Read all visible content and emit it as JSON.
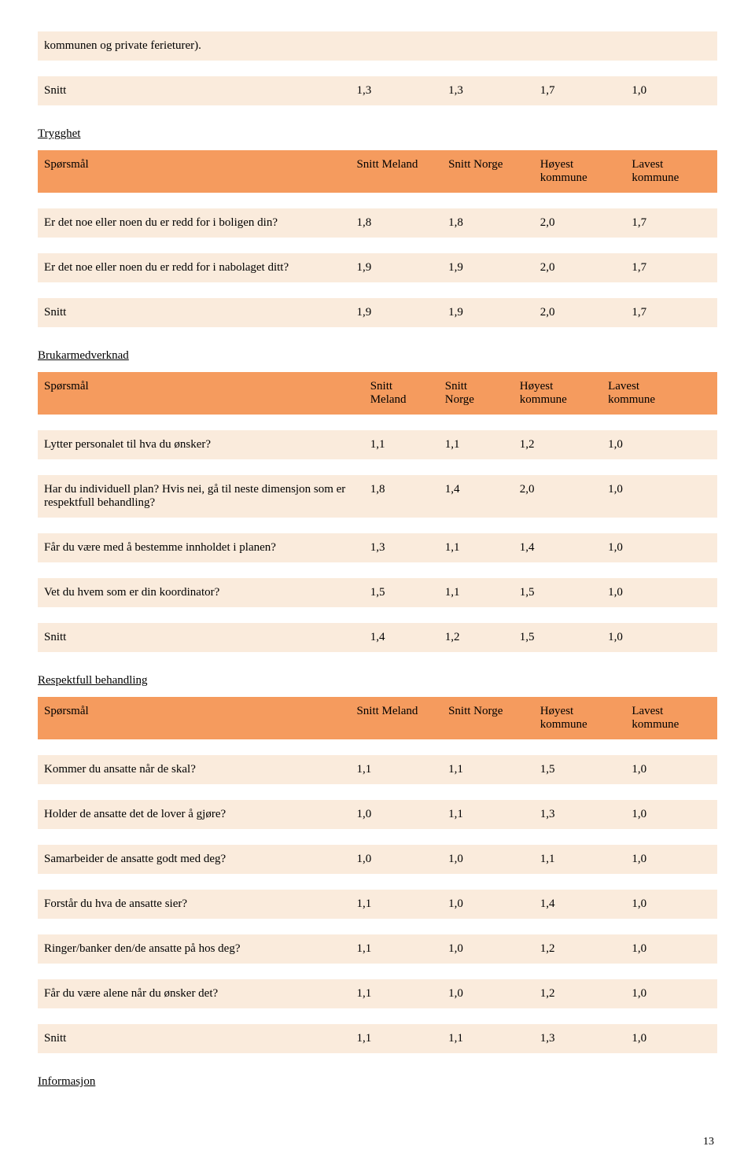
{
  "columns": {
    "q": "Spørsmål",
    "sm": "Snitt Meland",
    "sn": "Snitt Norge",
    "hk": "Høyest kommune",
    "lk": "Lavest kommune",
    "sm_short1": "Snitt",
    "sm_short2": "Meland",
    "sn_short1": "Snitt",
    "sn_short2": "Norge",
    "hk_short1": "Høyest",
    "hk_short2": "kommune",
    "lk_short1": "Lavest",
    "lk_short2": "kommune"
  },
  "top": {
    "cont_text": "kommunen og private ferieturer).",
    "snitt_label": "Snitt",
    "snitt_vals": [
      "1,3",
      "1,3",
      "1,7",
      "1,0"
    ]
  },
  "trygghet": {
    "title": "Trygghet",
    "rows": [
      {
        "q": "Er det noe eller noen du er redd for i boligen din?",
        "v": [
          "1,8",
          "1,8",
          "2,0",
          "1,7"
        ]
      },
      {
        "q": "Er det noe eller noen du er redd for i nabolaget ditt?",
        "v": [
          "1,9",
          "1,9",
          "2,0",
          "1,7"
        ]
      }
    ],
    "snitt_label": "Snitt",
    "snitt_vals": [
      "1,9",
      "1,9",
      "2,0",
      "1,7"
    ]
  },
  "brukar": {
    "title": "Brukarmedverknad",
    "rows": [
      {
        "q": "Lytter personalet til hva du ønsker?",
        "v": [
          "1,1",
          "1,1",
          "1,2",
          "1,0"
        ]
      },
      {
        "q": "Har du individuell plan? Hvis nei, gå til neste dimensjon som er respektfull behandling?",
        "v": [
          "1,8",
          "1,4",
          "2,0",
          "1,0"
        ]
      },
      {
        "q": "Får du være med å bestemme innholdet i planen?",
        "v": [
          "1,3",
          "1,1",
          "1,4",
          "1,0"
        ]
      },
      {
        "q": "Vet du hvem som er din koordinator?",
        "v": [
          "1,5",
          "1,1",
          "1,5",
          "1,0"
        ]
      }
    ],
    "snitt_label": "Snitt",
    "snitt_vals": [
      "1,4",
      "1,2",
      "1,5",
      "1,0"
    ]
  },
  "respekt": {
    "title": "Respektfull behandling",
    "rows": [
      {
        "q": "Kommer du ansatte når de skal?",
        "v": [
          "1,1",
          "1,1",
          "1,5",
          "1,0"
        ]
      },
      {
        "q": "Holder de ansatte det de lover å gjøre?",
        "v": [
          "1,0",
          "1,1",
          "1,3",
          "1,0"
        ]
      },
      {
        "q": "Samarbeider de ansatte godt med deg?",
        "v": [
          "1,0",
          "1,0",
          "1,1",
          "1,0"
        ]
      },
      {
        "q": "Forstår du hva de ansatte sier?",
        "v": [
          "1,1",
          "1,0",
          "1,4",
          "1,0"
        ]
      },
      {
        "q": "Ringer/banker den/de ansatte på hos deg?",
        "v": [
          "1,1",
          "1,0",
          "1,2",
          "1,0"
        ]
      },
      {
        "q": "Får du være alene når du ønsker det?",
        "v": [
          "1,1",
          "1,0",
          "1,2",
          "1,0"
        ]
      }
    ],
    "snitt_label": "Snitt",
    "snitt_vals": [
      "1,1",
      "1,1",
      "1,3",
      "1,0"
    ]
  },
  "informasjon": {
    "title": "Informasjon"
  },
  "page_number": "13",
  "colors": {
    "header_bg": "#f59b5e",
    "row_bg": "#faebdc",
    "page_bg": "#ffffff"
  }
}
